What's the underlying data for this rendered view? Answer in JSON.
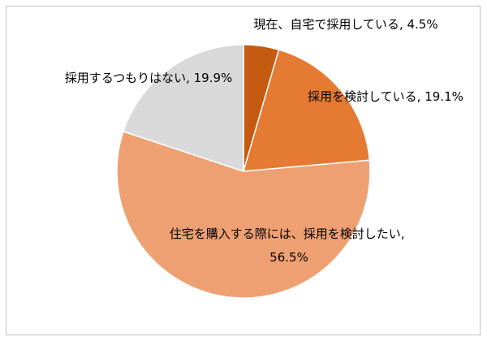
{
  "chart_data": {
    "type": "pie",
    "categories": [
      "現在、自宅で採用している",
      "採用を検討している",
      "住宅を購入する際には、採用を検討したい",
      "採用するつもりはない"
    ],
    "values": [
      4.5,
      19.1,
      56.5,
      19.9
    ],
    "colors": [
      "#C55A11",
      "#E57A32",
      "#EFA072",
      "#D9D9D9"
    ],
    "label_separator": ", ",
    "value_suffix": "%",
    "legend": "none"
  }
}
